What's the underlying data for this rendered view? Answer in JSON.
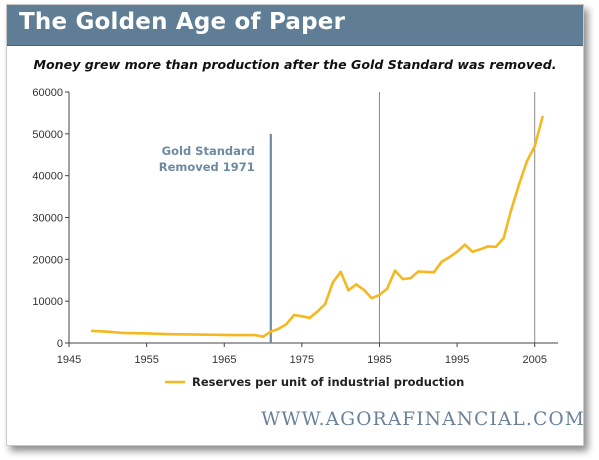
{
  "header": {
    "title": "The Golden Age of Paper",
    "subtitle": "Money grew more than production after the Gold Standard was removed."
  },
  "footer": {
    "url": "WWW.AGORAFINANCIAL.COM"
  },
  "colors": {
    "title_bar": "#5f7d95",
    "series_line": "#f5b820",
    "marker_line": "#6d8aa3",
    "vertical_grid": "#8a8a8a",
    "url_text": "#6a8199"
  },
  "chart_data": {
    "type": "line",
    "title": "",
    "xlabel": "",
    "ylabel": "",
    "xlim": [
      1945,
      2008
    ],
    "ylim": [
      0,
      60000
    ],
    "x_ticks": [
      1945,
      1955,
      1965,
      1975,
      1985,
      1995,
      2005
    ],
    "y_ticks": [
      0,
      10000,
      20000,
      30000,
      40000,
      50000,
      60000
    ],
    "vertical_gridlines_at": [
      1985,
      2005
    ],
    "legend_position": "bottom-center",
    "annotation": {
      "line1": "Gold Standard",
      "line2": "Removed 1971",
      "x": 1971
    },
    "series": [
      {
        "name": "Reserves per unit of industrial production",
        "x": [
          1948,
          1950,
          1952,
          1955,
          1958,
          1962,
          1966,
          1969,
          1970,
          1971,
          1972,
          1973,
          1974,
          1975,
          1976,
          1977,
          1978,
          1979,
          1980,
          1981,
          1982,
          1983,
          1984,
          1985,
          1986,
          1987,
          1988,
          1989,
          1990,
          1991,
          1992,
          1993,
          1994,
          1995,
          1996,
          1997,
          1998,
          1999,
          2000,
          2001,
          2002,
          2003,
          2004,
          2005,
          2006
        ],
        "values": [
          2900,
          2700,
          2400,
          2300,
          2100,
          2000,
          1900,
          1900,
          1500,
          2700,
          3400,
          4500,
          6700,
          6400,
          6000,
          7500,
          9300,
          14500,
          17000,
          12600,
          14000,
          12700,
          10700,
          11500,
          13000,
          17300,
          15300,
          15500,
          17100,
          17000,
          16900,
          19400,
          20500,
          21800,
          23500,
          21800,
          22400,
          23100,
          23000,
          25100,
          32000,
          38000,
          43500,
          47000,
          54000
        ]
      }
    ]
  }
}
